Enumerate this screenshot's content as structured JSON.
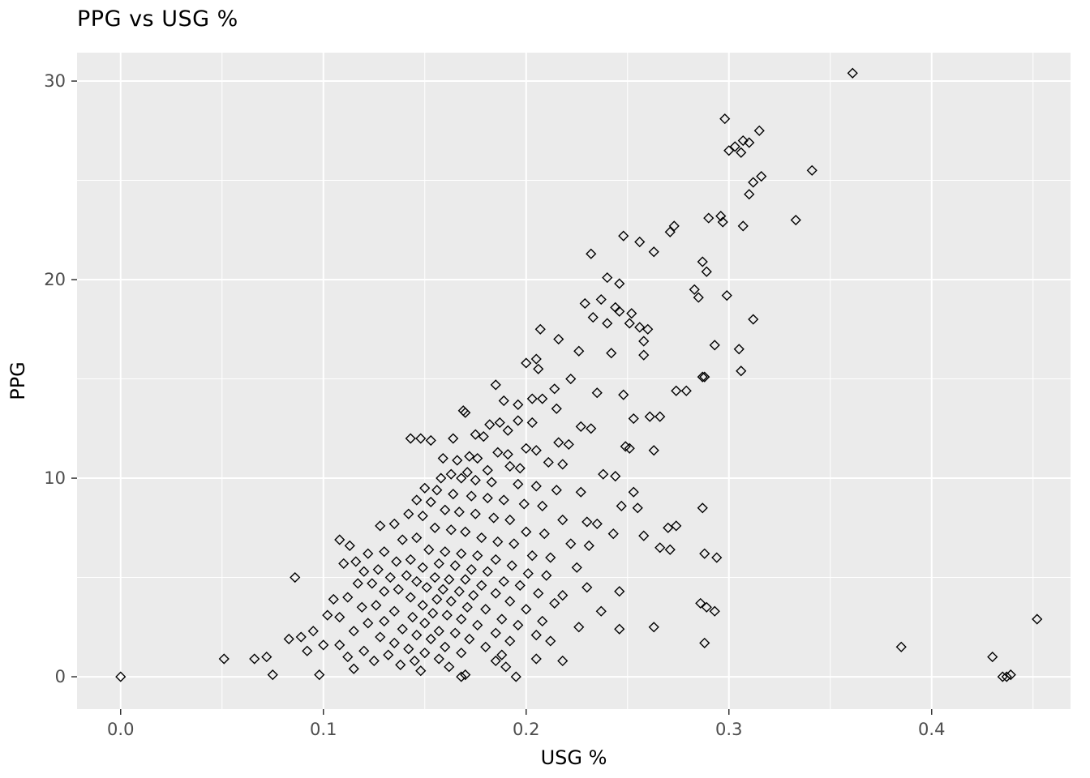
{
  "chart_data": {
    "type": "scatter",
    "title": "PPG vs USG %",
    "xlabel": "USG %",
    "ylabel": "PPG",
    "xlim": [
      -0.0215,
      0.4685
    ],
    "ylim": [
      -1.63,
      31.43
    ],
    "xticks": [
      0.0,
      0.1,
      0.2,
      0.3,
      0.4
    ],
    "xtick_labels": [
      "0.0",
      "0.1",
      "0.2",
      "0.3",
      "0.4"
    ],
    "xticks_minor": [
      0.05,
      0.15,
      0.25,
      0.35,
      0.45
    ],
    "yticks": [
      0,
      10,
      20,
      30
    ],
    "ytick_labels": [
      "0",
      "10",
      "20",
      "30"
    ],
    "yticks_minor": [
      5,
      15,
      25
    ],
    "legend": "none",
    "grid": "on",
    "marker": "open-diamond",
    "colors": {
      "panel_background": "#EBEBEB",
      "grid_major": "#FFFFFF",
      "grid_minor": "#F5F5F5",
      "marker_stroke": "#000000",
      "tick_mark": "#333333",
      "tick_label": "#4D4D4D",
      "axis_title": "#000000",
      "title": "#000000"
    },
    "points": [
      [
        0.361,
        30.4
      ],
      [
        0.298,
        28.1
      ],
      [
        0.315,
        27.5
      ],
      [
        0.307,
        27.0
      ],
      [
        0.31,
        26.9
      ],
      [
        0.303,
        26.7
      ],
      [
        0.3,
        26.5
      ],
      [
        0.306,
        26.4
      ],
      [
        0.341,
        25.5
      ],
      [
        0.316,
        25.2
      ],
      [
        0.312,
        24.9
      ],
      [
        0.31,
        24.3
      ],
      [
        0.333,
        23.0
      ],
      [
        0.296,
        23.2
      ],
      [
        0.29,
        23.1
      ],
      [
        0.297,
        22.9
      ],
      [
        0.307,
        22.7
      ],
      [
        0.273,
        22.7
      ],
      [
        0.271,
        22.4
      ],
      [
        0.248,
        22.2
      ],
      [
        0.256,
        21.9
      ],
      [
        0.263,
        21.4
      ],
      [
        0.232,
        21.3
      ],
      [
        0.287,
        20.9
      ],
      [
        0.289,
        20.4
      ],
      [
        0.24,
        20.1
      ],
      [
        0.246,
        19.8
      ],
      [
        0.283,
        19.5
      ],
      [
        0.299,
        19.2
      ],
      [
        0.285,
        19.1
      ],
      [
        0.237,
        19.0
      ],
      [
        0.229,
        18.8
      ],
      [
        0.244,
        18.6
      ],
      [
        0.246,
        18.4
      ],
      [
        0.252,
        18.3
      ],
      [
        0.233,
        18.1
      ],
      [
        0.312,
        18.0
      ],
      [
        0.24,
        17.8
      ],
      [
        0.251,
        17.8
      ],
      [
        0.256,
        17.6
      ],
      [
        0.207,
        17.5
      ],
      [
        0.26,
        17.5
      ],
      [
        0.216,
        17.0
      ],
      [
        0.258,
        16.9
      ],
      [
        0.293,
        16.7
      ],
      [
        0.305,
        16.5
      ],
      [
        0.226,
        16.4
      ],
      [
        0.242,
        16.3
      ],
      [
        0.258,
        16.2
      ],
      [
        0.205,
        16.0
      ],
      [
        0.2,
        15.8
      ],
      [
        0.206,
        15.5
      ],
      [
        0.306,
        15.4
      ],
      [
        0.287,
        15.1
      ],
      [
        0.288,
        15.1
      ],
      [
        0.222,
        15.0
      ],
      [
        0.185,
        14.7
      ],
      [
        0.214,
        14.5
      ],
      [
        0.274,
        14.4
      ],
      [
        0.279,
        14.4
      ],
      [
        0.235,
        14.3
      ],
      [
        0.248,
        14.2
      ],
      [
        0.203,
        14.0
      ],
      [
        0.208,
        14.0
      ],
      [
        0.189,
        13.9
      ],
      [
        0.196,
        13.7
      ],
      [
        0.215,
        13.5
      ],
      [
        0.169,
        13.4
      ],
      [
        0.17,
        13.3
      ],
      [
        0.266,
        13.1
      ],
      [
        0.261,
        13.1
      ],
      [
        0.253,
        13.0
      ],
      [
        0.196,
        12.9
      ],
      [
        0.203,
        12.8
      ],
      [
        0.187,
        12.8
      ],
      [
        0.182,
        12.7
      ],
      [
        0.227,
        12.6
      ],
      [
        0.232,
        12.5
      ],
      [
        0.191,
        12.4
      ],
      [
        0.175,
        12.2
      ],
      [
        0.179,
        12.1
      ],
      [
        0.164,
        12.0
      ],
      [
        0.143,
        12.0
      ],
      [
        0.148,
        12.0
      ],
      [
        0.153,
        11.9
      ],
      [
        0.216,
        11.8
      ],
      [
        0.221,
        11.7
      ],
      [
        0.249,
        11.6
      ],
      [
        0.251,
        11.5
      ],
      [
        0.263,
        11.4
      ],
      [
        0.2,
        11.5
      ],
      [
        0.205,
        11.4
      ],
      [
        0.186,
        11.3
      ],
      [
        0.191,
        11.2
      ],
      [
        0.172,
        11.1
      ],
      [
        0.176,
        11.0
      ],
      [
        0.159,
        11.0
      ],
      [
        0.166,
        10.9
      ],
      [
        0.211,
        10.8
      ],
      [
        0.218,
        10.7
      ],
      [
        0.192,
        10.6
      ],
      [
        0.197,
        10.5
      ],
      [
        0.181,
        10.4
      ],
      [
        0.171,
        10.3
      ],
      [
        0.163,
        10.2
      ],
      [
        0.238,
        10.2
      ],
      [
        0.244,
        10.1
      ],
      [
        0.158,
        10.0
      ],
      [
        0.168,
        10.0
      ],
      [
        0.175,
        9.9
      ],
      [
        0.183,
        9.8
      ],
      [
        0.196,
        9.7
      ],
      [
        0.205,
        9.6
      ],
      [
        0.15,
        9.5
      ],
      [
        0.156,
        9.4
      ],
      [
        0.215,
        9.4
      ],
      [
        0.227,
        9.3
      ],
      [
        0.253,
        9.3
      ],
      [
        0.164,
        9.2
      ],
      [
        0.173,
        9.1
      ],
      [
        0.181,
        9.0
      ],
      [
        0.189,
        8.9
      ],
      [
        0.146,
        8.9
      ],
      [
        0.153,
        8.8
      ],
      [
        0.199,
        8.7
      ],
      [
        0.208,
        8.6
      ],
      [
        0.247,
        8.6
      ],
      [
        0.255,
        8.5
      ],
      [
        0.287,
        8.5
      ],
      [
        0.16,
        8.4
      ],
      [
        0.167,
        8.3
      ],
      [
        0.175,
        8.2
      ],
      [
        0.142,
        8.2
      ],
      [
        0.149,
        8.1
      ],
      [
        0.184,
        8.0
      ],
      [
        0.192,
        7.9
      ],
      [
        0.218,
        7.9
      ],
      [
        0.23,
        7.8
      ],
      [
        0.235,
        7.7
      ],
      [
        0.135,
        7.7
      ],
      [
        0.128,
        7.6
      ],
      [
        0.155,
        7.5
      ],
      [
        0.163,
        7.4
      ],
      [
        0.17,
        7.3
      ],
      [
        0.2,
        7.3
      ],
      [
        0.209,
        7.2
      ],
      [
        0.243,
        7.2
      ],
      [
        0.258,
        7.1
      ],
      [
        0.27,
        7.5
      ],
      [
        0.274,
        7.6
      ],
      [
        0.178,
        7.0
      ],
      [
        0.146,
        7.0
      ],
      [
        0.139,
        6.9
      ],
      [
        0.108,
        6.9
      ],
      [
        0.113,
        6.6
      ],
      [
        0.186,
        6.8
      ],
      [
        0.194,
        6.7
      ],
      [
        0.222,
        6.7
      ],
      [
        0.231,
        6.6
      ],
      [
        0.266,
        6.5
      ],
      [
        0.271,
        6.4
      ],
      [
        0.152,
        6.4
      ],
      [
        0.16,
        6.3
      ],
      [
        0.13,
        6.3
      ],
      [
        0.122,
        6.2
      ],
      [
        0.168,
        6.2
      ],
      [
        0.176,
        6.1
      ],
      [
        0.203,
        6.1
      ],
      [
        0.212,
        6.0
      ],
      [
        0.288,
        6.2
      ],
      [
        0.294,
        6.0
      ],
      [
        0.185,
        5.9
      ],
      [
        0.143,
        5.9
      ],
      [
        0.136,
        5.8
      ],
      [
        0.116,
        5.8
      ],
      [
        0.11,
        5.7
      ],
      [
        0.157,
        5.7
      ],
      [
        0.165,
        5.6
      ],
      [
        0.193,
        5.6
      ],
      [
        0.225,
        5.5
      ],
      [
        0.149,
        5.5
      ],
      [
        0.173,
        5.4
      ],
      [
        0.127,
        5.4
      ],
      [
        0.12,
        5.3
      ],
      [
        0.181,
        5.3
      ],
      [
        0.201,
        5.2
      ],
      [
        0.21,
        5.1
      ],
      [
        0.141,
        5.1
      ],
      [
        0.133,
        5.0
      ],
      [
        0.086,
        5.0
      ],
      [
        0.155,
        5.0
      ],
      [
        0.162,
        4.9
      ],
      [
        0.17,
        4.9
      ],
      [
        0.189,
        4.8
      ],
      [
        0.146,
        4.8
      ],
      [
        0.124,
        4.7
      ],
      [
        0.117,
        4.7
      ],
      [
        0.178,
        4.6
      ],
      [
        0.197,
        4.6
      ],
      [
        0.23,
        4.5
      ],
      [
        0.151,
        4.5
      ],
      [
        0.159,
        4.4
      ],
      [
        0.137,
        4.4
      ],
      [
        0.13,
        4.3
      ],
      [
        0.167,
        4.3
      ],
      [
        0.185,
        4.2
      ],
      [
        0.206,
        4.2
      ],
      [
        0.218,
        4.1
      ],
      [
        0.246,
        4.3
      ],
      [
        0.174,
        4.1
      ],
      [
        0.143,
        4.0
      ],
      [
        0.112,
        4.0
      ],
      [
        0.105,
        3.9
      ],
      [
        0.156,
        3.9
      ],
      [
        0.163,
        3.8
      ],
      [
        0.192,
        3.8
      ],
      [
        0.214,
        3.7
      ],
      [
        0.286,
        3.7
      ],
      [
        0.289,
        3.5
      ],
      [
        0.149,
        3.6
      ],
      [
        0.126,
        3.6
      ],
      [
        0.119,
        3.5
      ],
      [
        0.171,
        3.5
      ],
      [
        0.18,
        3.4
      ],
      [
        0.2,
        3.4
      ],
      [
        0.237,
        3.3
      ],
      [
        0.293,
        3.3
      ],
      [
        0.135,
        3.3
      ],
      [
        0.154,
        3.2
      ],
      [
        0.161,
        3.1
      ],
      [
        0.102,
        3.1
      ],
      [
        0.108,
        3.0
      ],
      [
        0.144,
        3.0
      ],
      [
        0.168,
        2.9
      ],
      [
        0.188,
        2.9
      ],
      [
        0.208,
        2.8
      ],
      [
        0.452,
        2.9
      ],
      [
        0.13,
        2.8
      ],
      [
        0.122,
        2.7
      ],
      [
        0.15,
        2.7
      ],
      [
        0.176,
        2.6
      ],
      [
        0.196,
        2.6
      ],
      [
        0.226,
        2.5
      ],
      [
        0.263,
        2.5
      ],
      [
        0.246,
        2.4
      ],
      [
        0.139,
        2.4
      ],
      [
        0.115,
        2.3
      ],
      [
        0.095,
        2.3
      ],
      [
        0.157,
        2.3
      ],
      [
        0.165,
        2.2
      ],
      [
        0.185,
        2.2
      ],
      [
        0.205,
        2.1
      ],
      [
        0.146,
        2.1
      ],
      [
        0.128,
        2.0
      ],
      [
        0.089,
        2.0
      ],
      [
        0.083,
        1.9
      ],
      [
        0.153,
        1.9
      ],
      [
        0.172,
        1.9
      ],
      [
        0.192,
        1.8
      ],
      [
        0.212,
        1.8
      ],
      [
        0.288,
        1.7
      ],
      [
        0.135,
        1.7
      ],
      [
        0.108,
        1.6
      ],
      [
        0.1,
        1.6
      ],
      [
        0.16,
        1.5
      ],
      [
        0.18,
        1.5
      ],
      [
        0.385,
        1.5
      ],
      [
        0.142,
        1.4
      ],
      [
        0.12,
        1.3
      ],
      [
        0.092,
        1.3
      ],
      [
        0.15,
        1.2
      ],
      [
        0.168,
        1.2
      ],
      [
        0.188,
        1.1
      ],
      [
        0.132,
        1.1
      ],
      [
        0.112,
        1.0
      ],
      [
        0.072,
        1.0
      ],
      [
        0.066,
        0.9
      ],
      [
        0.051,
        0.9
      ],
      [
        0.43,
        1.0
      ],
      [
        0.157,
        0.9
      ],
      [
        0.145,
        0.8
      ],
      [
        0.125,
        0.8
      ],
      [
        0.185,
        0.8
      ],
      [
        0.205,
        0.9
      ],
      [
        0.218,
        0.8
      ],
      [
        0.138,
        0.6
      ],
      [
        0.162,
        0.5
      ],
      [
        0.19,
        0.5
      ],
      [
        0.115,
        0.4
      ],
      [
        0.148,
        0.3
      ],
      [
        0.098,
        0.1
      ],
      [
        0.075,
        0.1
      ],
      [
        0.17,
        0.1
      ],
      [
        0.168,
        0.0
      ],
      [
        0.195,
        0.0
      ],
      [
        0.0,
        0.0
      ],
      [
        0.435,
        0.0
      ],
      [
        0.437,
        0.0
      ],
      [
        0.439,
        0.1
      ]
    ]
  }
}
